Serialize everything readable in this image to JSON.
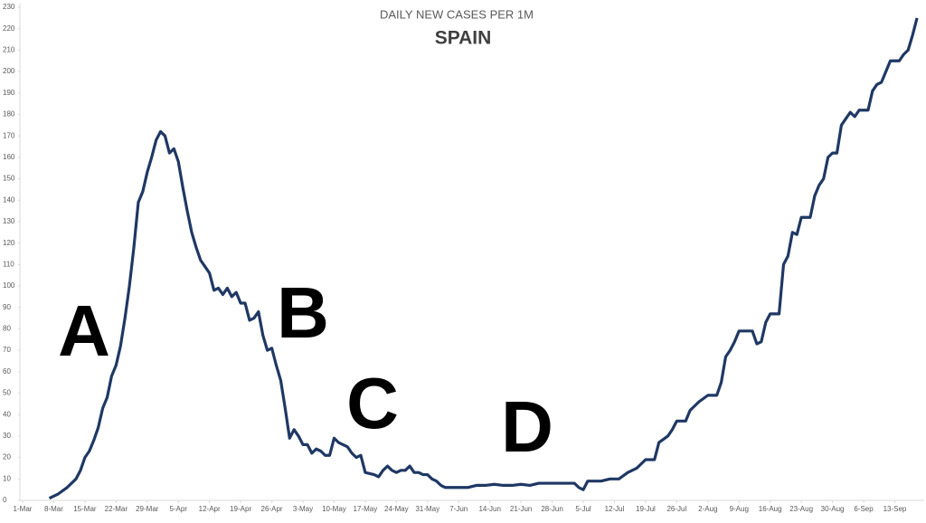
{
  "chart_data": {
    "type": "line",
    "title": "DAILY NEW CASES PER 1M",
    "subtitle": "SPAIN",
    "annotations": [
      "A",
      "B",
      "C",
      "D"
    ],
    "xlim": [
      0,
      202
    ],
    "xticks": [
      {
        "value": 0,
        "label": "1-Mar"
      },
      {
        "value": 7,
        "label": "8-Mar"
      },
      {
        "value": 14,
        "label": "15-Mar"
      },
      {
        "value": 21,
        "label": "22-Mar"
      },
      {
        "value": 28,
        "label": "29-Mar"
      },
      {
        "value": 35,
        "label": "5-Apr"
      },
      {
        "value": 42,
        "label": "12-Apr"
      },
      {
        "value": 49,
        "label": "19-Apr"
      },
      {
        "value": 56,
        "label": "26-Apr"
      },
      {
        "value": 63,
        "label": "3-May"
      },
      {
        "value": 70,
        "label": "10-May"
      },
      {
        "value": 77,
        "label": "17-May"
      },
      {
        "value": 84,
        "label": "24-May"
      },
      {
        "value": 91,
        "label": "31-May"
      },
      {
        "value": 98,
        "label": "7-Jun"
      },
      {
        "value": 105,
        "label": "14-Jun"
      },
      {
        "value": 112,
        "label": "21-Jun"
      },
      {
        "value": 119,
        "label": "28-Jun"
      },
      {
        "value": 126,
        "label": "5-Jul"
      },
      {
        "value": 133,
        "label": "12-Jul"
      },
      {
        "value": 140,
        "label": "19-Jul"
      },
      {
        "value": 147,
        "label": "26-Jul"
      },
      {
        "value": 154,
        "label": "2-Aug"
      },
      {
        "value": 161,
        "label": "9-Aug"
      },
      {
        "value": 168,
        "label": "16-Aug"
      },
      {
        "value": 175,
        "label": "23-Aug"
      },
      {
        "value": 182,
        "label": "30-Aug"
      },
      {
        "value": 189,
        "label": "6-Sep"
      },
      {
        "value": 196,
        "label": "13-Sep"
      }
    ],
    "ylim": [
      0,
      230
    ],
    "yticks": [
      0,
      10,
      20,
      30,
      40,
      50,
      60,
      70,
      80,
      90,
      100,
      110,
      120,
      130,
      140,
      150,
      160,
      170,
      180,
      190,
      200,
      210,
      220,
      230
    ],
    "color": "#1f3864",
    "x": [
      6,
      8,
      10,
      12,
      13,
      14,
      15,
      16,
      17,
      18,
      19,
      20,
      21,
      22,
      23,
      24,
      25,
      26,
      27,
      28,
      29,
      30,
      31,
      32,
      33,
      34,
      35,
      36,
      37,
      38,
      39,
      40,
      41,
      42,
      43,
      44,
      45,
      46,
      47,
      48,
      49,
      50,
      51,
      52,
      53,
      54,
      55,
      56,
      57,
      58,
      59,
      60,
      61,
      62,
      63,
      64,
      65,
      66,
      67,
      68,
      69,
      70,
      71,
      72,
      73,
      74,
      75,
      76,
      77,
      79,
      80,
      81,
      82,
      83,
      84,
      85,
      86,
      87,
      88,
      89,
      90,
      91,
      92,
      93,
      94,
      95,
      96,
      98,
      100,
      102,
      104,
      106,
      108,
      110,
      112,
      114,
      116,
      118,
      120,
      122,
      124,
      125,
      126,
      127,
      128,
      130,
      132,
      134,
      136,
      138,
      139,
      140,
      142,
      143,
      145,
      146,
      147,
      149,
      150,
      151,
      152,
      154,
      156,
      157,
      158,
      159,
      160,
      161,
      164,
      165,
      166,
      167,
      168,
      170,
      171,
      172,
      173,
      174,
      175,
      177,
      178,
      179,
      180,
      181,
      182,
      183,
      184,
      185,
      186,
      187,
      188,
      190,
      191,
      192,
      193,
      194,
      195,
      197,
      198,
      199,
      200,
      201
    ],
    "values": [
      1,
      3,
      6,
      10,
      14,
      20,
      23,
      28,
      34,
      43,
      48,
      58,
      63,
      72,
      85,
      100,
      118,
      139,
      144,
      153,
      160,
      168,
      172,
      170,
      162,
      164,
      158,
      146,
      135,
      125,
      118,
      112,
      109,
      106,
      98,
      99,
      96,
      99,
      95,
      97,
      92,
      92,
      84,
      85,
      88,
      77,
      70,
      71,
      63,
      56,
      43,
      29,
      33,
      30,
      26,
      26,
      22,
      24,
      23,
      21,
      21,
      29,
      27,
      26,
      25,
      22,
      20,
      21,
      13,
      12,
      11,
      14,
      16,
      14,
      13,
      14,
      14,
      16,
      13,
      13,
      12,
      12,
      10,
      9,
      7,
      6,
      6,
      6,
      6,
      7,
      7,
      7.5,
      7,
      7,
      7.5,
      7,
      8,
      8,
      8,
      8,
      8,
      6,
      5,
      9,
      9,
      9,
      10,
      10,
      13,
      15,
      17,
      19,
      19,
      27,
      30,
      33,
      37,
      37,
      42,
      44,
      46,
      49,
      49,
      55,
      67,
      70,
      74,
      79,
      79,
      73,
      74,
      83,
      87,
      87,
      110,
      114,
      125,
      124,
      132,
      132,
      142,
      147,
      150,
      160,
      162,
      162,
      175,
      178,
      181,
      179,
      182,
      182,
      191,
      194,
      195,
      200,
      205,
      205,
      208,
      210,
      217,
      225
    ]
  }
}
